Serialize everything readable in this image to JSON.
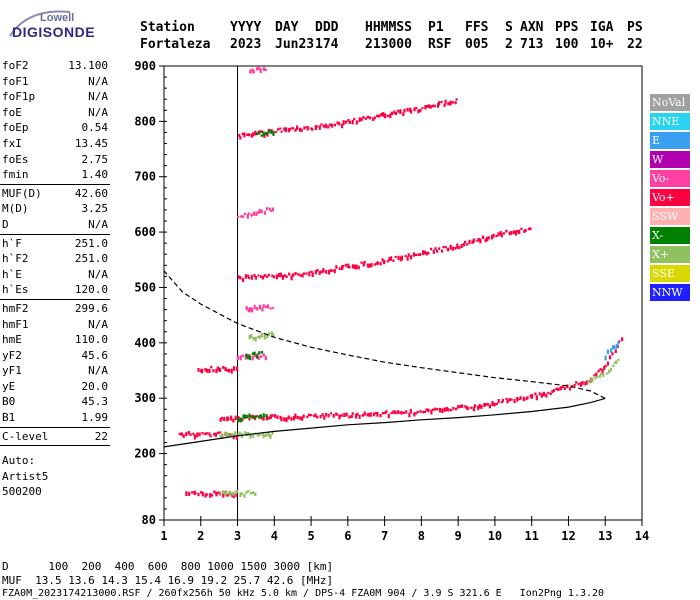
{
  "logo": {
    "line1": "Lowell",
    "line2": "DIGISONDE"
  },
  "header": {
    "labels": [
      "Station",
      "YYYY",
      "DAY",
      "DDD",
      "HHMMSS",
      "P1",
      "FFS",
      "S",
      "AXN",
      "PPS",
      "IGA",
      "PS"
    ],
    "values": [
      "Fortaleza",
      "2023",
      "Jun23",
      "174",
      "213000",
      "RSF",
      "005",
      "2",
      "713",
      "100",
      "10+",
      "22"
    ]
  },
  "panel": {
    "group1": [
      {
        "k": "foF2",
        "v": "13.100"
      },
      {
        "k": "foF1",
        "v": "N/A"
      },
      {
        "k": "foF1p",
        "v": "N/A"
      },
      {
        "k": "foE",
        "v": "N/A"
      },
      {
        "k": "foEp",
        "v": "0.54"
      },
      {
        "k": "fxI",
        "v": "13.45"
      },
      {
        "k": "foEs",
        "v": "2.75"
      },
      {
        "k": "fmin",
        "v": "1.40"
      }
    ],
    "group2": [
      {
        "k": "MUF(D)",
        "v": "42.60"
      },
      {
        "k": "M(D)",
        "v": "3.25"
      },
      {
        "k": "D",
        "v": "N/A"
      }
    ],
    "group3": [
      {
        "k": "h`F",
        "v": "251.0"
      },
      {
        "k": "h`F2",
        "v": "251.0"
      },
      {
        "k": "h`E",
        "v": "N/A"
      },
      {
        "k": "h`Es",
        "v": "120.0"
      }
    ],
    "group4": [
      {
        "k": "hmF2",
        "v": "299.6"
      },
      {
        "k": "hmF1",
        "v": "N/A"
      },
      {
        "k": "hmE",
        "v": "110.0"
      },
      {
        "k": "yF2",
        "v": "45.6"
      },
      {
        "k": "yF1",
        "v": "N/A"
      },
      {
        "k": "yE",
        "v": "20.0"
      },
      {
        "k": "B0",
        "v": "45.3"
      },
      {
        "k": "B1",
        "v": "1.99"
      }
    ],
    "group5": [
      {
        "k": "C-level",
        "v": "22"
      }
    ],
    "auto": [
      "Auto:",
      "Artist5",
      "500200"
    ]
  },
  "legend": [
    {
      "label": "NoVal",
      "color": "#a0a0a0"
    },
    {
      "label": "NNE",
      "color": "#2ad4f0"
    },
    {
      "label": "E",
      "color": "#3a9ff0"
    },
    {
      "label": "W",
      "color": "#b000b0"
    },
    {
      "label": "Vo-",
      "color": "#ff40a0"
    },
    {
      "label": "Vo+",
      "color": "#ff0040"
    },
    {
      "label": "SSW",
      "color": "#ffb0b0"
    },
    {
      "label": "X-",
      "color": "#008000"
    },
    {
      "label": "X+",
      "color": "#90c060"
    },
    {
      "label": "SSE",
      "color": "#d8d800"
    },
    {
      "label": "NNW",
      "color": "#2020ff"
    }
  ],
  "footer": {
    "d_line": "D      100  200  400  600  800 1000 1500 3000 [km]",
    "muf_line": "MUF  13.5 13.6 14.3 15.4 16.9 19.2 25.7 42.6 [MHz]",
    "file_line": "FZA0M_2023174213000.RSF / 260fx256h 50 kHz 5.0 km / DPS-4 FZA0M 904 / 3.9 S 321.6 E   Ion2Png 1.3.20"
  },
  "chart_data": {
    "type": "scatter",
    "xlim": [
      1,
      14
    ],
    "ylim": [
      80,
      900
    ],
    "xticks": [
      "1",
      "2",
      "3",
      "4",
      "5",
      "6",
      "7",
      "8",
      "9",
      "10",
      "11",
      "12",
      "13",
      "14"
    ],
    "yticks": [
      "80",
      "200",
      "300",
      "400",
      "500",
      "600",
      "700",
      "800",
      "900"
    ],
    "grid_x": [
      3
    ],
    "series": [
      {
        "name": "Vo+",
        "color": "#ff0040",
        "segments": [
          [
            [
              1.4,
              238
            ],
            [
              2.5,
              237
            ],
            [
              3.0,
              236
            ]
          ],
          [
            [
              2.5,
              265
            ],
            [
              4.0,
              268
            ],
            [
              6.0,
              272
            ],
            [
              8.0,
              278
            ],
            [
              9.5,
              288
            ],
            [
              10.5,
              300
            ],
            [
              11.3,
              310
            ],
            [
              12.0,
              323
            ],
            [
              12.6,
              338
            ],
            [
              13.0,
              362
            ],
            [
              13.3,
              395
            ],
            [
              13.5,
              415
            ]
          ],
          [
            [
              1.6,
              130
            ],
            [
              3.0,
              130
            ]
          ],
          [
            [
              3.0,
              520
            ],
            [
              4.5,
              525
            ],
            [
              5.5,
              535
            ],
            [
              6.8,
              548
            ],
            [
              8.0,
              565
            ],
            [
              9.0,
              578
            ],
            [
              10.0,
              598
            ],
            [
              11.0,
              610
            ]
          ],
          [
            [
              3.0,
              775
            ],
            [
              4.0,
              785
            ],
            [
              5.5,
              795
            ],
            [
              7.0,
              815
            ],
            [
              8.0,
              825
            ],
            [
              9.0,
              842
            ]
          ],
          [
            [
              1.9,
              355
            ],
            [
              3.0,
              355
            ]
          ]
        ]
      },
      {
        "name": "Vo-",
        "color": "#ff40a0",
        "segments": [
          [
            [
              3.0,
              630
            ],
            [
              4.0,
              645
            ]
          ],
          [
            [
              3.2,
              465
            ],
            [
              4.0,
              468
            ]
          ],
          [
            [
              3.3,
              895
            ],
            [
              3.8,
              898
            ]
          ],
          [
            [
              3.0,
              375
            ],
            [
              3.8,
              380
            ]
          ]
        ]
      },
      {
        "name": "X-",
        "color": "#008000",
        "segments": [
          [
            [
              3.0,
              268
            ],
            [
              3.8,
              270
            ]
          ],
          [
            [
              3.2,
              380
            ],
            [
              3.7,
              382
            ]
          ],
          [
            [
              3.5,
              778
            ],
            [
              4.0,
              785
            ]
          ]
        ]
      },
      {
        "name": "X+",
        "color": "#90c060",
        "segments": [
          [
            [
              2.5,
              236
            ],
            [
              4.0,
              238
            ]
          ],
          [
            [
              2.5,
              130
            ],
            [
              3.5,
              131
            ]
          ],
          [
            [
              3.3,
              412
            ],
            [
              4.0,
              420
            ]
          ],
          [
            [
              12.5,
              332
            ],
            [
              13.0,
              350
            ],
            [
              13.4,
              375
            ]
          ]
        ]
      },
      {
        "name": "E",
        "color": "#3a9ff0",
        "segments": [
          [
            [
              13.0,
              380
            ],
            [
              13.4,
              410
            ]
          ]
        ]
      },
      {
        "name": "profile-solid",
        "color": "#000000",
        "line": "solid",
        "points": [
          [
            1.0,
            212
          ],
          [
            2.0,
            222
          ],
          [
            3.0,
            232
          ],
          [
            4.0,
            240
          ],
          [
            5.0,
            246
          ],
          [
            6.0,
            252
          ],
          [
            7.0,
            256
          ],
          [
            8.0,
            261
          ],
          [
            9.0,
            265
          ],
          [
            10.0,
            270
          ],
          [
            11.0,
            276
          ],
          [
            12.0,
            284
          ],
          [
            12.6,
            292
          ],
          [
            13.0,
            299.6
          ]
        ]
      },
      {
        "name": "profile-dashed",
        "color": "#000000",
        "line": "dashed",
        "points": [
          [
            13.0,
            299.6
          ],
          [
            12.6,
            313
          ],
          [
            12.0,
            322
          ],
          [
            11.0,
            330
          ],
          [
            10.0,
            337
          ],
          [
            9.0,
            346
          ],
          [
            8.0,
            355
          ],
          [
            7.0,
            365
          ],
          [
            6.0,
            378
          ],
          [
            5.0,
            392
          ],
          [
            4.0,
            410
          ],
          [
            3.0,
            435
          ],
          [
            2.0,
            470
          ],
          [
            1.5,
            492
          ],
          [
            1.0,
            530
          ]
        ]
      }
    ]
  }
}
